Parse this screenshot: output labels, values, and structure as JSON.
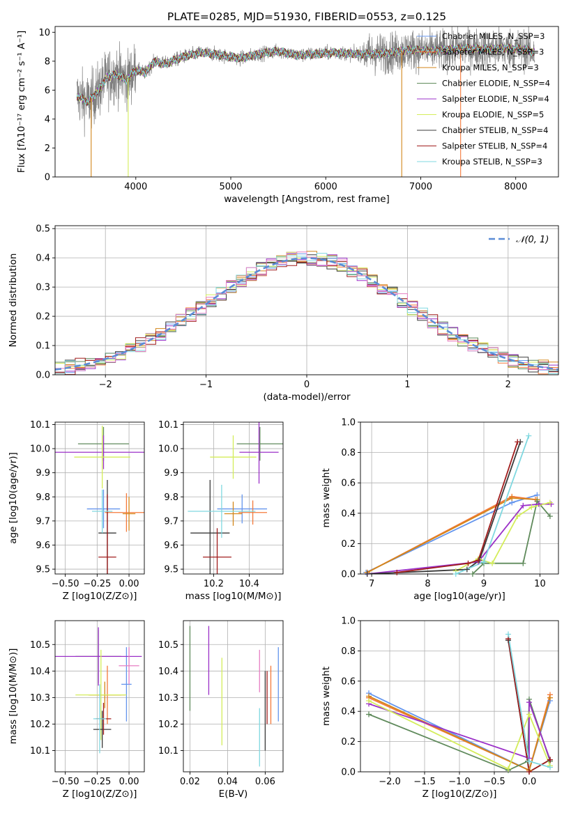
{
  "chart_data": [
    {
      "type": "line",
      "id": "spectrum",
      "title": "PLATE=0285, MJD=51930, FIBERID=0553, z=0.125",
      "xlabel": "wavelength [Angstrom, rest frame]",
      "ylabel": "Flux [fλ10⁻¹⁷ erg cm⁻² s⁻¹ A⁻¹]",
      "xlim": [
        3150,
        8450
      ],
      "ylim": [
        0,
        10.4
      ],
      "xticks": [
        4000,
        5000,
        6000,
        7000,
        8000
      ],
      "yticks": [
        0,
        2,
        4,
        6,
        8,
        10
      ],
      "legend_position": "upper right",
      "grid": false,
      "continuum": {
        "x": [
          3380,
          3500,
          3600,
          3700,
          3800,
          3900,
          4000,
          4100,
          4200,
          4300,
          4500,
          4700,
          4900,
          5100,
          5300,
          5500,
          5700,
          5900,
          6100,
          6300,
          6500,
          6700,
          6900,
          7100,
          7300,
          7500,
          7700,
          7900,
          8100,
          8200
        ],
        "y": [
          5.6,
          5.2,
          5.9,
          6.9,
          7.1,
          6.7,
          7.4,
          7.2,
          8.0,
          7.8,
          8.3,
          8.6,
          8.4,
          8.2,
          8.5,
          8.7,
          8.4,
          8.5,
          8.6,
          8.5,
          8.5,
          8.6,
          8.8,
          8.7,
          8.8,
          8.9,
          8.8,
          8.9,
          8.8,
          8.6
        ]
      },
      "drop_lines": [
        3530,
        3920,
        6800,
        7420
      ],
      "series": [
        {
          "name": "Chabrier MILES, N_SSP=3",
          "color": "#6495ed"
        },
        {
          "name": "Salpeter MILES, N_SSP=3",
          "color": "#f4793a"
        },
        {
          "name": "Kroupa MILES, N_SSP=3",
          "color": "#d3861a"
        },
        {
          "name": "Chabrier ELODIE, N_SSP=4",
          "color": "#5f8a5b"
        },
        {
          "name": "Salpeter ELODIE, N_SSP=4",
          "color": "#9b30c8"
        },
        {
          "name": "Kroupa ELODIE, N_SSP=5",
          "color": "#d4ed5a"
        },
        {
          "name": "Chabrier STELIB, N_SSP=4",
          "color": "#3a3a3a"
        },
        {
          "name": "Salpeter STELIB, N_SSP=4",
          "color": "#a01c1c"
        },
        {
          "name": "Kroupa STELIB, N_SSP=3",
          "color": "#7fd8e0"
        }
      ]
    },
    {
      "type": "histogram",
      "id": "residuals",
      "xlabel": "(data-model)/error",
      "ylabel": "Normed distribution",
      "xlim": [
        -2.5,
        2.5
      ],
      "ylim": [
        0,
        0.51
      ],
      "xticks": [
        -2,
        -1,
        0,
        1,
        2
      ],
      "yticks": [
        0.0,
        0.1,
        0.2,
        0.3,
        0.4,
        0.5
      ],
      "grid": true,
      "bin_width": 0.1,
      "reference_curve": {
        "name": "𝒩(0, 1)",
        "mean": 0,
        "sigma": 1,
        "color": "#5b8cd6",
        "style": "dashed"
      },
      "legend_position": "upper right"
    },
    {
      "type": "scatter",
      "id": "age-vs-Z",
      "xlabel": "Z [log10(Z/Z⊙)]",
      "ylabel": "age  [log10(age/yr)]",
      "xlim": [
        -0.58,
        0.12
      ],
      "ylim": [
        9.48,
        10.11
      ],
      "xticks": [
        -0.5,
        -0.25,
        0.0
      ],
      "yticks": [
        9.5,
        9.6,
        9.7,
        9.8,
        9.9,
        10.0,
        10.1
      ],
      "grid": true,
      "points": [
        {
          "x": -0.2,
          "xerr": 0.13,
          "y": 9.75,
          "yerr": 0.08,
          "color": "#6495ed"
        },
        {
          "x": -0.02,
          "xerr": 0.17,
          "y": 9.735,
          "yerr": 0.08,
          "color": "#f4793a"
        },
        {
          "x": 0.0,
          "xerr": 0.05,
          "y": 9.73,
          "yerr": 0.07,
          "color": "#d3861a"
        },
        {
          "x": -0.2,
          "xerr": 0.2,
          "y": 10.02,
          "yerr": 0.07,
          "color": "#5f8a5b"
        },
        {
          "x": -0.2,
          "xerr": 0.38,
          "y": 9.985,
          "yerr": 0.07,
          "color": "#9b30c8"
        },
        {
          "x": -0.21,
          "xerr": 0.22,
          "y": 9.965,
          "yerr": 0.13,
          "color": "#d4ed5a"
        },
        {
          "x": -0.17,
          "xerr": 0.07,
          "y": 9.65,
          "yerr": 0.22,
          "color": "#3a3a3a"
        },
        {
          "x": -0.17,
          "xerr": 0.07,
          "y": 9.55,
          "yerr": 0.26,
          "color": "#a01c1c"
        },
        {
          "x": -0.21,
          "xerr": 0.08,
          "y": 9.74,
          "yerr": 0.09,
          "color": "#7fd8e0"
        }
      ]
    },
    {
      "type": "scatter",
      "id": "age-vs-mass",
      "xlabel": "mass [log10(M/M⊙)]",
      "xlim": [
        10.03,
        10.59
      ],
      "ylim": [
        9.48,
        10.11
      ],
      "xticks": [
        10.2,
        10.4
      ],
      "yticks": [
        9.5,
        9.6,
        9.7,
        9.8,
        9.9,
        10.0,
        10.1
      ],
      "grid": true,
      "points": [
        {
          "x": 10.36,
          "xerr": 0.14,
          "y": 9.75,
          "yerr": 0.06,
          "color": "#6495ed"
        },
        {
          "x": 10.42,
          "xerr": 0.08,
          "y": 9.735,
          "yerr": 0.05,
          "color": "#f4793a"
        },
        {
          "x": 10.31,
          "xerr": 0.05,
          "y": 9.73,
          "yerr": 0.05,
          "color": "#d3861a"
        },
        {
          "x": 10.46,
          "xerr": 0.13,
          "y": 10.02,
          "yerr": 0.07,
          "color": "#5f8a5b"
        },
        {
          "x": 10.455,
          "xerr": 0.11,
          "y": 9.985,
          "yerr": 0.13,
          "color": "#9b30c8"
        },
        {
          "x": 10.31,
          "xerr": 0.13,
          "y": 9.965,
          "yerr": 0.09,
          "color": "#d4ed5a"
        },
        {
          "x": 10.18,
          "xerr": 0.11,
          "y": 9.65,
          "yerr": 0.22,
          "color": "#3a3a3a"
        },
        {
          "x": 10.22,
          "xerr": 0.08,
          "y": 9.55,
          "yerr": 0.12,
          "color": "#a01c1c"
        },
        {
          "x": 10.245,
          "xerr": 0.19,
          "y": 9.74,
          "yerr": 0.11,
          "color": "#7fd8e0"
        }
      ]
    },
    {
      "type": "line",
      "id": "mass-weight-vs-age",
      "xlabel": "age  [log10(age/yr)]",
      "ylabel": "mass weight",
      "xlim": [
        6.8,
        10.33
      ],
      "ylim": [
        0,
        1.0
      ],
      "xticks": [
        7,
        8,
        9,
        10
      ],
      "yticks": [
        0.0,
        0.2,
        0.4,
        0.6,
        0.8,
        1.0
      ],
      "grid": true,
      "series": [
        {
          "color": "#6495ed",
          "x": [
            6.9,
            9.5,
            9.95
          ],
          "y": [
            0.01,
            0.47,
            0.52
          ]
        },
        {
          "color": "#f4793a",
          "x": [
            6.92,
            9.5,
            9.92
          ],
          "y": [
            0.01,
            0.51,
            0.49
          ]
        },
        {
          "color": "#d3861a",
          "x": [
            6.92,
            9.5,
            9.95
          ],
          "y": [
            0.01,
            0.5,
            0.49
          ]
        },
        {
          "color": "#5f8a5b",
          "x": [
            8.8,
            9.0,
            9.7,
            9.95,
            10.18
          ],
          "y": [
            0.0,
            0.07,
            0.07,
            0.48,
            0.38
          ]
        },
        {
          "color": "#9b30c8",
          "x": [
            6.92,
            8.9,
            9.7,
            9.98,
            10.2
          ],
          "y": [
            0.0,
            0.08,
            0.45,
            0.46,
            0.46
          ]
        },
        {
          "color": "#d4ed5a",
          "x": [
            8.5,
            8.9,
            9.15,
            9.6,
            9.85,
            10.18
          ],
          "y": [
            0.02,
            0.1,
            0.07,
            0.38,
            0.44,
            0.47
          ]
        },
        {
          "color": "#3a3a3a",
          "x": [
            6.92,
            8.7,
            8.92,
            9.65
          ],
          "y": [
            0.0,
            0.03,
            0.09,
            0.87
          ]
        },
        {
          "color": "#a01c1c",
          "x": [
            7.45,
            8.72,
            8.9,
            9.6
          ],
          "y": [
            0.01,
            0.07,
            0.09,
            0.87
          ]
        },
        {
          "color": "#7fd8e0",
          "x": [
            8.5,
            9.0,
            9.8
          ],
          "y": [
            0.0,
            0.08,
            0.91
          ]
        }
      ]
    },
    {
      "type": "scatter",
      "id": "mass-vs-Z",
      "xlabel": "Z [log10(Z/Z⊙)]",
      "ylabel": "mass [log10(M/M⊙)]",
      "xlim": [
        -0.58,
        0.12
      ],
      "ylim": [
        10.02,
        10.59
      ],
      "xticks": [
        -0.5,
        -0.25,
        0.0
      ],
      "yticks": [
        10.1,
        10.2,
        10.3,
        10.4,
        10.5
      ],
      "grid": true,
      "points": [
        {
          "x": -0.02,
          "xerr": 0.04,
          "y": 10.35,
          "yerr": 0.14,
          "color": "#6495ed"
        },
        {
          "x": -0.17,
          "xerr": 0.14,
          "y": 10.31,
          "yerr": 0.11,
          "color": "#f4793a"
        },
        {
          "x": -0.19,
          "xerr": 0.13,
          "y": 10.31,
          "yerr": 0.05,
          "color": "#d3861a"
        },
        {
          "x": -0.24,
          "xerr": 0.18,
          "y": 10.455,
          "yerr": 0.1,
          "color": "#5f8a5b"
        },
        {
          "x": -0.24,
          "xerr": 0.34,
          "y": 10.455,
          "yerr": 0.11,
          "color": "#9b30c8"
        },
        {
          "x": -0.22,
          "xerr": 0.2,
          "y": 10.31,
          "yerr": 0.17,
          "color": "#d4ed5a"
        },
        {
          "x": -0.21,
          "xerr": 0.07,
          "y": 10.18,
          "yerr": 0.07,
          "color": "#3a3a3a"
        },
        {
          "x": -0.2,
          "xerr": 0.06,
          "y": 10.22,
          "yerr": 0.06,
          "color": "#a01c1c"
        },
        {
          "x": -0.23,
          "xerr": 0.05,
          "y": 10.22,
          "yerr": 0.13,
          "color": "#7fd8e0"
        },
        {
          "x": 0.0,
          "xerr": 0.08,
          "y": 10.42,
          "yerr": 0.07,
          "color": "#e77ec3"
        }
      ]
    },
    {
      "type": "scatter",
      "id": "mass-vs-ebv",
      "xlabel": "E(B-V)",
      "xlim": [
        0.0165,
        0.0695
      ],
      "ylim": [
        10.02,
        10.59
      ],
      "xticks": [
        0.02,
        0.04,
        0.06
      ],
      "yticks": [
        10.1,
        10.2,
        10.3,
        10.4,
        10.5
      ],
      "grid": true,
      "points": [
        {
          "x": 0.067,
          "y": 10.35,
          "yerr": 0.14,
          "color": "#6495ed"
        },
        {
          "x": 0.063,
          "y": 10.31,
          "yerr": 0.11,
          "color": "#f4793a"
        },
        {
          "x": 0.057,
          "y": 10.4,
          "yerr": 0.08,
          "color": "#e77ec3"
        },
        {
          "x": 0.02,
          "y": 10.41,
          "yerr": 0.16,
          "color": "#5f8a5b"
        },
        {
          "x": 0.03,
          "y": 10.44,
          "yerr": 0.13,
          "color": "#9b30c8"
        },
        {
          "x": 0.037,
          "y": 10.285,
          "yerr": 0.165,
          "color": "#d4ed5a"
        },
        {
          "x": 0.06,
          "y": 10.25,
          "yerr": 0.15,
          "color": "#3a3a3a"
        },
        {
          "x": 0.061,
          "y": 10.3,
          "yerr": 0.1,
          "color": "#a01c1c"
        },
        {
          "x": 0.057,
          "y": 10.15,
          "yerr": 0.11,
          "color": "#7fd8e0"
        }
      ]
    },
    {
      "type": "line",
      "id": "mass-weight-vs-Z",
      "xlabel": "Z [log10(Z/Z⊙)]",
      "ylabel": "mass weight",
      "xlim": [
        -2.42,
        0.42
      ],
      "ylim": [
        0,
        1.0
      ],
      "xticks": [
        -2.0,
        -1.5,
        -1.0,
        -0.5,
        0.0
      ],
      "yticks": [
        0.0,
        0.2,
        0.4,
        0.6,
        0.8,
        1.0
      ],
      "grid": true,
      "series": [
        {
          "color": "#6495ed",
          "x": [
            -2.3,
            0.0,
            0.3
          ],
          "y": [
            0.52,
            0.01,
            0.47
          ]
        },
        {
          "color": "#f4793a",
          "x": [
            -2.3,
            0.0,
            0.3
          ],
          "y": [
            0.49,
            0.01,
            0.51
          ]
        },
        {
          "color": "#d3861a",
          "x": [
            -2.3,
            0.0,
            0.3
          ],
          "y": [
            0.5,
            0.01,
            0.49
          ]
        },
        {
          "color": "#5f8a5b",
          "x": [
            -2.3,
            -0.3,
            -0.02,
            0.0,
            0.3
          ],
          "y": [
            0.38,
            0.01,
            0.07,
            0.48,
            0.07
          ]
        },
        {
          "color": "#9b30c8",
          "x": [
            -2.3,
            0.0,
            0.0,
            0.3
          ],
          "y": [
            0.45,
            0.09,
            0.46,
            0.08
          ]
        },
        {
          "color": "#d4ed5a",
          "x": [
            -2.3,
            -0.3,
            0.0,
            0.3
          ],
          "y": [
            0.47,
            0.02,
            0.38,
            0.04
          ]
        },
        {
          "color": "#3a3a3a",
          "x": [
            -0.3,
            0.0,
            0.3
          ],
          "y": [
            0.87,
            0.0,
            0.08
          ]
        },
        {
          "color": "#a01c1c",
          "x": [
            -0.3,
            0.0,
            0.3
          ],
          "y": [
            0.88,
            0.0,
            0.08
          ]
        },
        {
          "color": "#7fd8e0",
          "x": [
            -0.3,
            0.0,
            0.3
          ],
          "y": [
            0.91,
            0.07,
            0.03
          ]
        }
      ]
    }
  ]
}
